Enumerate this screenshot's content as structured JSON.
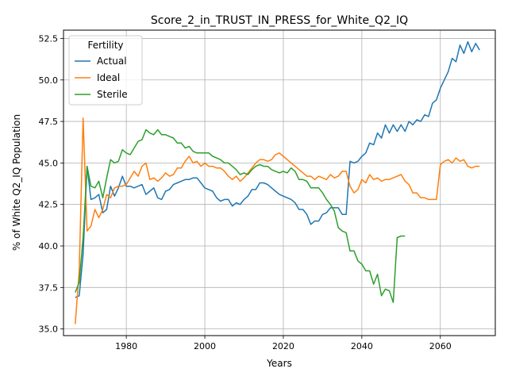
{
  "chart_data": {
    "type": "line",
    "title": "Score_2_in_TRUST_IN_PRESS_for_White_Q2_IQ",
    "xlabel": "Years",
    "ylabel": "% of White Q2_IQ Population",
    "xlim": [
      1964,
      2074
    ],
    "ylim": [
      34.6,
      53.0
    ],
    "xticks": [
      1980,
      2000,
      2020,
      2040,
      2060
    ],
    "yticks": [
      35.0,
      37.5,
      40.0,
      42.5,
      45.0,
      47.5,
      50.0,
      52.5
    ],
    "grid": true,
    "legend": {
      "title": "Fertility",
      "position": "top-left"
    },
    "series": [
      {
        "name": "Actual",
        "color": "#1f77b4",
        "x": [
          1967,
          1968,
          1969,
          1970,
          1971,
          1972,
          1973,
          1974,
          1975,
          1976,
          1977,
          1978,
          1979,
          1980,
          1981,
          1982,
          1983,
          1984,
          1985,
          1986,
          1987,
          1988,
          1989,
          1990,
          1991,
          1992,
          1993,
          1994,
          1995,
          1996,
          1997,
          1998,
          1999,
          2000,
          2001,
          2002,
          2003,
          2004,
          2005,
          2006,
          2007,
          2008,
          2009,
          2010,
          2011,
          2012,
          2013,
          2014,
          2015,
          2016,
          2017,
          2018,
          2019,
          2020,
          2021,
          2022,
          2023,
          2024,
          2025,
          2026,
          2027,
          2028,
          2029,
          2030,
          2031,
          2032,
          2033,
          2034,
          2035,
          2036,
          2037,
          2038,
          2039,
          2040,
          2041,
          2042,
          2043,
          2044,
          2045,
          2046,
          2047,
          2048,
          2049,
          2050,
          2051,
          2052,
          2053,
          2054,
          2055,
          2056,
          2057,
          2058,
          2059,
          2060,
          2061,
          2062,
          2063,
          2064,
          2065,
          2066,
          2067,
          2068,
          2069,
          2070
        ],
        "y": [
          36.9,
          37.0,
          39.5,
          44.8,
          42.8,
          42.9,
          43.1,
          42.0,
          42.2,
          43.6,
          43.0,
          43.5,
          44.2,
          43.6,
          43.6,
          43.5,
          43.6,
          43.7,
          43.1,
          43.3,
          43.5,
          42.9,
          42.8,
          43.3,
          43.4,
          43.7,
          43.8,
          43.9,
          44.0,
          44.0,
          44.1,
          44.1,
          43.8,
          43.5,
          43.4,
          43.3,
          42.9,
          42.7,
          42.8,
          42.8,
          42.4,
          42.6,
          42.5,
          42.8,
          43.0,
          43.4,
          43.4,
          43.8,
          43.8,
          43.7,
          43.5,
          43.3,
          43.1,
          43.0,
          42.9,
          42.8,
          42.6,
          42.2,
          42.2,
          41.9,
          41.3,
          41.5,
          41.5,
          41.9,
          42.0,
          42.3,
          42.3,
          42.3,
          41.9,
          41.9,
          45.1,
          45.0,
          45.1,
          45.4,
          45.6,
          46.2,
          46.1,
          46.8,
          46.5,
          47.3,
          46.8,
          47.3,
          46.9,
          47.3,
          46.9,
          47.5,
          47.3,
          47.6,
          47.5,
          47.9,
          47.8,
          48.6,
          48.8,
          49.5,
          50.0,
          50.5,
          51.3,
          51.1,
          52.1,
          51.6,
          52.3,
          51.7,
          52.2,
          51.8
        ]
      },
      {
        "name": "Ideal",
        "color": "#ff7f0e",
        "x": [
          1967,
          1968,
          1969,
          1970,
          1971,
          1972,
          1973,
          1974,
          1975,
          1976,
          1977,
          1978,
          1979,
          1980,
          1981,
          1982,
          1983,
          1984,
          1985,
          1986,
          1987,
          1988,
          1989,
          1990,
          1991,
          1992,
          1993,
          1994,
          1995,
          1996,
          1997,
          1998,
          1999,
          2000,
          2001,
          2002,
          2003,
          2004,
          2005,
          2006,
          2007,
          2008,
          2009,
          2010,
          2011,
          2012,
          2013,
          2014,
          2015,
          2016,
          2017,
          2018,
          2019,
          2020,
          2021,
          2022,
          2023,
          2024,
          2025,
          2026,
          2027,
          2028,
          2029,
          2030,
          2031,
          2032,
          2033,
          2034,
          2035,
          2036,
          2037,
          2038,
          2039,
          2040,
          2041,
          2042,
          2043,
          2044,
          2045,
          2046,
          2047,
          2048,
          2049,
          2050,
          2051,
          2052,
          2053,
          2054,
          2055,
          2056,
          2057,
          2058,
          2059,
          2060,
          2061,
          2062,
          2063,
          2064,
          2065,
          2066,
          2067,
          2068,
          2069,
          2070
        ],
        "y": [
          35.3,
          38.5,
          47.7,
          40.9,
          41.2,
          42.2,
          41.7,
          42.2,
          43.1,
          42.9,
          43.5,
          43.6,
          43.6,
          43.7,
          44.1,
          44.5,
          44.2,
          44.8,
          45.0,
          44.0,
          44.1,
          43.9,
          44.1,
          44.4,
          44.2,
          44.3,
          44.7,
          44.7,
          45.1,
          45.4,
          45.0,
          45.1,
          44.8,
          45.0,
          44.8,
          44.8,
          44.7,
          44.7,
          44.5,
          44.2,
          44.0,
          44.2,
          43.9,
          44.1,
          44.4,
          44.7,
          45.0,
          45.2,
          45.2,
          45.1,
          45.2,
          45.5,
          45.6,
          45.4,
          45.2,
          45.0,
          44.8,
          44.6,
          44.4,
          44.2,
          44.2,
          44.0,
          44.2,
          44.1,
          44.0,
          44.3,
          44.1,
          44.2,
          44.5,
          44.5,
          43.6,
          43.2,
          43.4,
          44.0,
          43.8,
          44.3,
          44.0,
          44.1,
          43.9,
          44.0,
          44.0,
          44.1,
          44.2,
          44.3,
          43.9,
          43.7,
          43.2,
          43.2,
          42.9,
          42.9,
          42.8,
          42.8,
          42.8,
          44.9,
          45.1,
          45.2,
          45.0,
          45.3,
          45.1,
          45.2,
          44.8,
          44.7,
          44.8,
          44.8
        ]
      },
      {
        "name": "Sterile",
        "color": "#2ca02c",
        "x": [
          1967,
          1968,
          1969,
          1970,
          1971,
          1972,
          1973,
          1974,
          1975,
          1976,
          1977,
          1978,
          1979,
          1980,
          1981,
          1982,
          1983,
          1984,
          1985,
          1986,
          1987,
          1988,
          1989,
          1990,
          1991,
          1992,
          1993,
          1994,
          1995,
          1996,
          1997,
          1998,
          1999,
          2000,
          2001,
          2002,
          2003,
          2004,
          2005,
          2006,
          2007,
          2008,
          2009,
          2010,
          2011,
          2012,
          2013,
          2014,
          2015,
          2016,
          2017,
          2018,
          2019,
          2020,
          2021,
          2022,
          2023,
          2024,
          2025,
          2026,
          2027,
          2028,
          2029,
          2030,
          2031,
          2032,
          2033,
          2034,
          2035,
          2036,
          2037,
          2038,
          2039,
          2040,
          2041,
          2042,
          2043,
          2044,
          2045,
          2046,
          2047,
          2048,
          2049,
          2050,
          2051
        ],
        "y": [
          37.2,
          37.8,
          40.5,
          44.8,
          43.6,
          43.5,
          43.9,
          42.9,
          44.1,
          45.2,
          45.0,
          45.1,
          45.8,
          45.6,
          45.5,
          45.9,
          46.3,
          46.4,
          47.0,
          46.8,
          46.7,
          47.0,
          46.7,
          46.7,
          46.6,
          46.5,
          46.2,
          46.2,
          45.9,
          46.0,
          45.7,
          45.6,
          45.6,
          45.6,
          45.6,
          45.4,
          45.3,
          45.2,
          45.0,
          45.0,
          44.8,
          44.6,
          44.3,
          44.4,
          44.3,
          44.6,
          44.8,
          44.9,
          44.8,
          44.8,
          44.6,
          44.5,
          44.4,
          44.5,
          44.4,
          44.7,
          44.5,
          44.0,
          44.0,
          43.9,
          43.5,
          43.5,
          43.5,
          43.2,
          42.8,
          42.5,
          42.1,
          41.1,
          40.9,
          40.8,
          39.7,
          39.7,
          39.1,
          38.9,
          38.5,
          38.5,
          37.7,
          38.3,
          37.0,
          37.4,
          37.3,
          36.6,
          40.5,
          40.6,
          40.6
        ]
      }
    ]
  }
}
